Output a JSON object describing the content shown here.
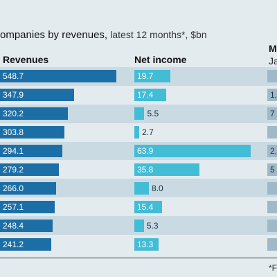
{
  "title": {
    "main": "ompanies by revenues,",
    "sub": "latest 12 months*, $bn"
  },
  "headers": {
    "revenues": "Revenues",
    "net_income": "Net income",
    "market_cap": "Ma",
    "market_cap_sub": "Ja"
  },
  "footnote": "*F",
  "colors": {
    "revenues": "#1c6fa6",
    "net_income": "#43bcd6",
    "market_cap": "#9fb9c9",
    "band": "#c9dae3",
    "background": "#e3ebee"
  },
  "chart_data": {
    "type": "bar",
    "series": [
      {
        "name": "Revenues",
        "values": [
          548.7,
          347.9,
          320.2,
          303.8,
          294.1,
          279.2,
          266.0,
          257.1,
          248.4,
          241.2
        ],
        "labels": [
          "548.7",
          "347.9",
          "320.2",
          "303.8",
          "294.1",
          "279.2",
          "266.0",
          "257.1",
          "248.4",
          "241.2"
        ]
      },
      {
        "name": "Net income",
        "values": [
          19.7,
          17.4,
          5.5,
          2.7,
          63.9,
          35.8,
          8.0,
          15.4,
          5.3,
          13.3
        ],
        "labels": [
          "19.7",
          "17.4",
          "5.5",
          "2.7",
          "63.9",
          "35.8",
          "8.0",
          "15.4",
          "5.3",
          "13.3"
        ]
      }
    ],
    "market_cap_partial_labels": [
      "",
      "1,",
      "7",
      "",
      "2,",
      "5",
      "",
      "",
      "",
      ""
    ],
    "xlabel": "",
    "ylabel": ""
  }
}
